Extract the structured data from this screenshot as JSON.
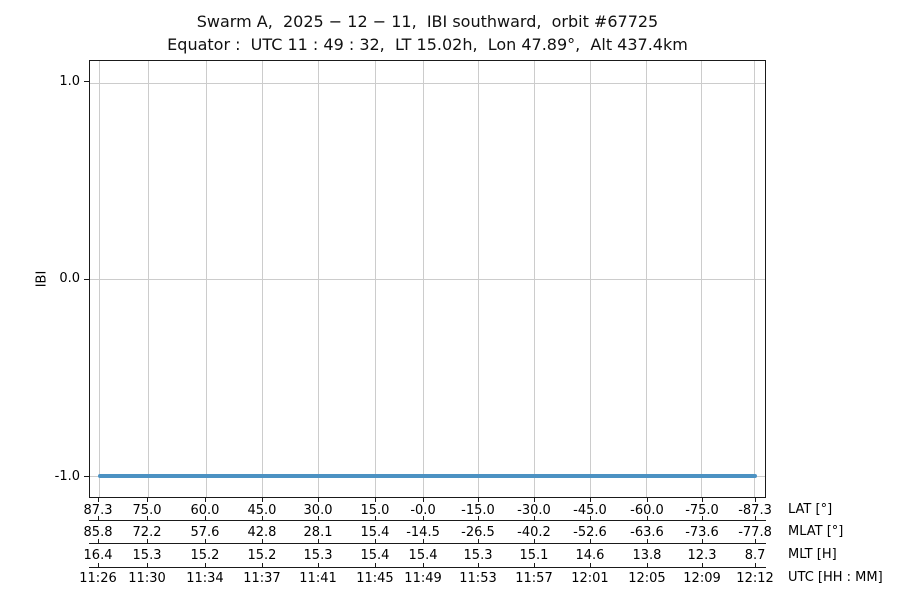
{
  "chart_data": {
    "type": "line",
    "title": "Swarm A,  2025 − 12 − 11,  IBI southward,  orbit #67725",
    "subtitle": "Equator :  UTC 11 : 49 : 32,  LT 15.02h,  Lon 47.89°,  Alt 437.4km",
    "ylabel": "IBI",
    "ylim": [
      -1.1,
      1.1
    ],
    "yticks": [
      1.0,
      0.0,
      -1.0
    ],
    "ytick_labels": [
      "1.0",
      "0.0",
      "-1.0"
    ],
    "ytick_positions_pct": [
      5.0,
      50.0,
      95.2
    ],
    "grid": true,
    "series": [
      {
        "name": "IBI",
        "color": "#4c92c3",
        "constant_y": -1.0,
        "points": [
          {
            "x": "11:26",
            "y": -1.0
          },
          {
            "x": "12:12",
            "y": -1.0
          }
        ]
      }
    ],
    "tick_positions_pct": [
      1.33,
      8.57,
      17.13,
      25.55,
      33.83,
      42.24,
      49.34,
      57.46,
      65.73,
      74.0,
      82.42,
      90.55,
      98.38
    ],
    "x_axes": [
      {
        "id": "lat",
        "label": "LAT [°]",
        "ticks": [
          "87.3",
          "75.0",
          "60.0",
          "45.0",
          "30.0",
          "15.0",
          "-0.0",
          "-15.0",
          "-30.0",
          "-45.0",
          "-60.0",
          "-75.0",
          "-87.3"
        ]
      },
      {
        "id": "mlat",
        "label": "MLAT [°]",
        "ticks": [
          "85.8",
          "72.2",
          "57.6",
          "42.8",
          "28.1",
          "15.4",
          "-14.5",
          "-26.5",
          "-40.2",
          "-52.6",
          "-63.6",
          "-73.6",
          "-77.8"
        ]
      },
      {
        "id": "mlt",
        "label": "MLT [H]",
        "ticks": [
          "16.4",
          "15.3",
          "15.2",
          "15.2",
          "15.3",
          "15.4",
          "15.4",
          "15.3",
          "15.1",
          "14.6",
          "13.8",
          "12.3",
          "8.7"
        ]
      },
      {
        "id": "utc",
        "label": "UTC [HH : MM]",
        "ticks": [
          "11:26",
          "11:30",
          "11:34",
          "11:37",
          "11:41",
          "11:45",
          "11:49",
          "11:53",
          "11:57",
          "12:01",
          "12:05",
          "12:09",
          "12:12"
        ]
      }
    ],
    "colors": {
      "line": "#4c92c3",
      "grid": "#cccccc",
      "spine": "#1a1a1a",
      "text": "#111111",
      "background": "#ffffff"
    }
  }
}
